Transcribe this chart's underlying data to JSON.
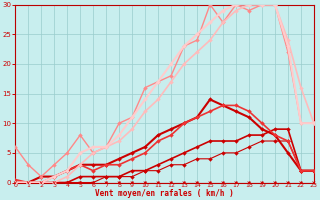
{
  "bg_color": "#c8eeee",
  "grid_color": "#99cccc",
  "xlabel": "Vent moyen/en rafales ( km/h )",
  "xlim": [
    0,
    23
  ],
  "ylim": [
    0,
    30
  ],
  "yticks": [
    0,
    5,
    10,
    15,
    20,
    25,
    30
  ],
  "xticks": [
    0,
    1,
    2,
    3,
    4,
    5,
    6,
    7,
    8,
    9,
    10,
    11,
    12,
    13,
    14,
    15,
    16,
    17,
    18,
    19,
    20,
    21,
    22,
    23
  ],
  "lines": [
    {
      "x": [
        0,
        1,
        2,
        3,
        4,
        5,
        6,
        7,
        8,
        9,
        10,
        11,
        12,
        13,
        14,
        15,
        16,
        17,
        18,
        19,
        20,
        21,
        22,
        23
      ],
      "y": [
        0,
        0,
        0,
        0,
        0,
        0,
        0,
        0,
        0,
        0,
        0,
        0,
        0,
        0,
        0,
        0,
        0,
        0,
        0,
        0,
        0,
        0,
        0,
        0
      ],
      "color": "#cc0000",
      "lw": 0.8
    },
    {
      "x": [
        0,
        1,
        2,
        3,
        4,
        5,
        6,
        7,
        8,
        9,
        10,
        11,
        12,
        13,
        14,
        15,
        16,
        17,
        18,
        19,
        20,
        21,
        22,
        23
      ],
      "y": [
        0,
        0,
        0,
        0,
        0,
        0,
        0,
        1,
        1,
        1,
        2,
        2,
        3,
        3,
        4,
        4,
        5,
        5,
        6,
        7,
        7,
        7,
        2,
        2
      ],
      "color": "#cc0000",
      "lw": 0.8
    },
    {
      "x": [
        0,
        1,
        2,
        3,
        4,
        5,
        6,
        7,
        8,
        9,
        10,
        11,
        12,
        13,
        14,
        15,
        16,
        17,
        18,
        19,
        20,
        21,
        22,
        23
      ],
      "y": [
        0,
        0,
        0,
        0,
        0,
        1,
        1,
        1,
        1,
        2,
        2,
        3,
        4,
        5,
        6,
        7,
        7,
        7,
        8,
        8,
        9,
        9,
        2,
        2
      ],
      "color": "#cc0000",
      "lw": 1.2
    },
    {
      "x": [
        0,
        1,
        2,
        3,
        4,
        5,
        6,
        7,
        8,
        9,
        10,
        11,
        12,
        13,
        14,
        15,
        16,
        17,
        18,
        19,
        20,
        21,
        22,
        23
      ],
      "y": [
        0,
        0,
        1,
        1,
        2,
        3,
        3,
        3,
        4,
        5,
        6,
        8,
        9,
        10,
        11,
        14,
        13,
        12,
        11,
        9,
        8,
        5,
        2,
        2
      ],
      "color": "#cc0000",
      "lw": 1.5
    },
    {
      "x": [
        0,
        1,
        2,
        3,
        4,
        5,
        6,
        7,
        8,
        9,
        10,
        11,
        12,
        13,
        14,
        15,
        16,
        17,
        18,
        19,
        20,
        21,
        22,
        23
      ],
      "y": [
        0.5,
        0,
        0,
        1,
        2,
        3,
        2,
        3,
        3,
        4,
        5,
        7,
        8,
        10,
        11,
        12,
        13,
        13,
        12,
        10,
        8,
        7,
        2,
        2
      ],
      "color": "#ee3333",
      "lw": 1.2
    },
    {
      "x": [
        0,
        1,
        2,
        3,
        4,
        5,
        6,
        7,
        8,
        9,
        10,
        11,
        12,
        13,
        14,
        15,
        16,
        17,
        18,
        19,
        20,
        21,
        22,
        23
      ],
      "y": [
        6,
        3,
        1,
        3,
        5,
        8,
        5,
        6,
        10,
        11,
        16,
        17,
        18,
        23,
        24,
        30,
        27,
        30,
        29,
        30,
        30,
        22,
        10,
        10
      ],
      "color": "#ff8888",
      "lw": 1.0
    },
    {
      "x": [
        0,
        1,
        2,
        3,
        4,
        5,
        6,
        7,
        8,
        9,
        10,
        11,
        12,
        13,
        14,
        15,
        16,
        17,
        18,
        19,
        20,
        21,
        22,
        23
      ],
      "y": [
        0,
        0,
        0,
        0,
        1,
        3,
        5,
        6,
        7,
        9,
        12,
        14,
        17,
        20,
        22,
        24,
        27,
        29,
        30,
        30,
        30,
        24,
        16,
        10
      ],
      "color": "#ffbbbb",
      "lw": 1.2
    },
    {
      "x": [
        0,
        1,
        2,
        3,
        4,
        5,
        6,
        7,
        8,
        9,
        10,
        11,
        12,
        13,
        14,
        15,
        16,
        17,
        18,
        19,
        20,
        21,
        22,
        23
      ],
      "y": [
        0,
        0,
        0,
        1,
        2,
        5,
        6,
        6,
        8,
        11,
        14,
        17,
        20,
        23,
        25,
        27,
        29,
        30,
        30,
        30,
        30,
        23,
        10,
        10
      ],
      "color": "#ffcccc",
      "lw": 1.5
    }
  ]
}
